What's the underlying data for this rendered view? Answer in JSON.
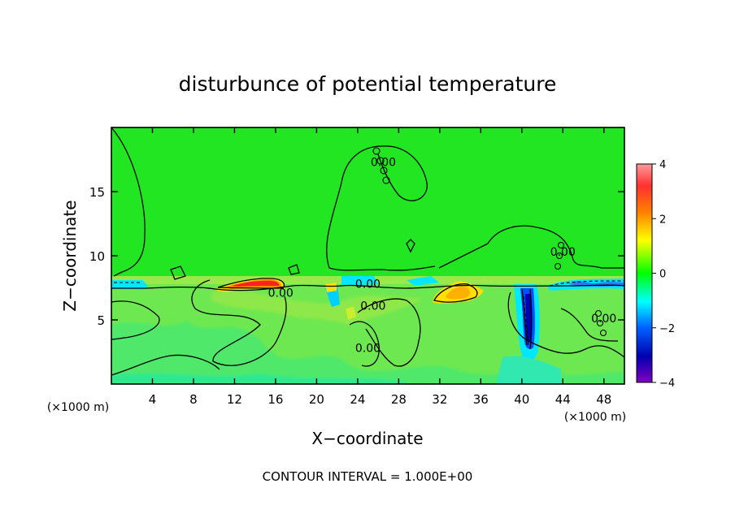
{
  "chart_data": {
    "type": "heatmap",
    "title": "disturbunce of potential temperature",
    "xlabel": "X−coordinate",
    "ylabel": "Z−coordinate",
    "x_unit_left": "(×1000 m)",
    "x_unit_right": "(×1000 m)",
    "footer": "CONTOUR INTERVAL = 1.000E+00",
    "xlim": [
      0,
      50
    ],
    "ylim": [
      0,
      20
    ],
    "x_ticks": [
      4,
      8,
      12,
      16,
      20,
      24,
      28,
      32,
      36,
      40,
      44,
      48
    ],
    "y_ticks": [
      5,
      10,
      15
    ],
    "contour_labels": [
      {
        "text": "0.00",
        "x": 16.5,
        "y": 6.8
      },
      {
        "text": "0.00",
        "x": 25.0,
        "y": 7.5
      },
      {
        "text": "0.00",
        "x": 25.5,
        "y": 5.8
      },
      {
        "text": "0.00",
        "x": 25.0,
        "y": 2.5
      },
      {
        "text": "0.00",
        "x": 26.5,
        "y": 17.0
      },
      {
        "text": "0.00",
        "x": 44.0,
        "y": 10.0
      },
      {
        "text": "0.00",
        "x": 48.0,
        "y": 4.8
      }
    ],
    "colorbar": {
      "range": [
        -4,
        4
      ],
      "ticks": [
        4,
        2,
        0,
        -2,
        -4
      ],
      "colors": [
        "#ff9a9a",
        "#ff3030",
        "#ff8000",
        "#ffff00",
        "#00ff00",
        "#00ffff",
        "#0060ff",
        "#0000b0",
        "#8000c0"
      ]
    },
    "features": [
      {
        "name": "background",
        "value": 0.0
      },
      {
        "name": "lower-layer",
        "value": 0.3
      },
      {
        "name": "warm-band",
        "x": [
          11,
          17
        ],
        "z": [
          7.4,
          8.2
        ],
        "value": 3.8
      },
      {
        "name": "warm-patch",
        "x": [
          31.5,
          35.5
        ],
        "z": [
          6.3,
          7.8
        ],
        "value": 1.5
      },
      {
        "name": "cold-column",
        "x": [
          39.5,
          41.5
        ],
        "z": [
          2.5,
          7.8
        ],
        "value": -3.0
      },
      {
        "name": "cold-strip-right",
        "x": [
          42,
          50
        ],
        "z": [
          7.3,
          8.2
        ],
        "value": -1.2
      },
      {
        "name": "cold-strip-left",
        "x": [
          0,
          3
        ],
        "z": [
          7.5,
          8.2
        ],
        "value": -1.0
      }
    ]
  }
}
